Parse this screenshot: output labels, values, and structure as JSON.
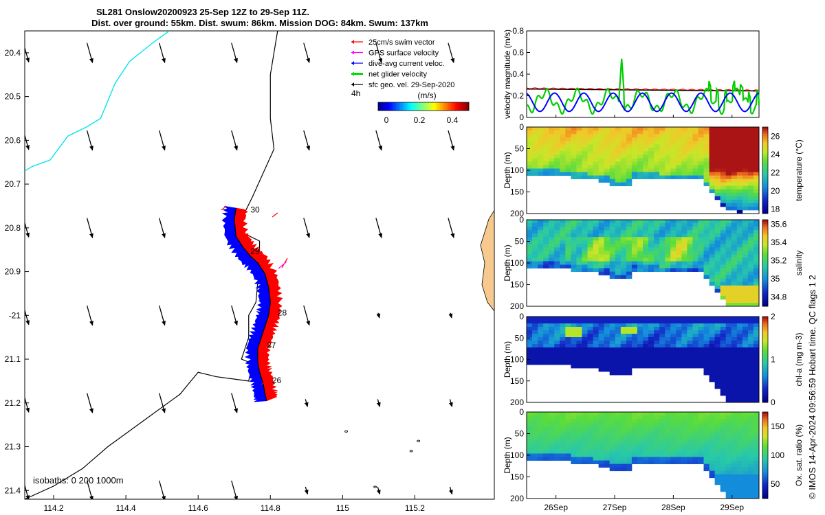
{
  "title": {
    "line1": "SL281 Onslow20200923 25-Sep 12Z to 29-Sep 11Z.",
    "line2": "Dist. over ground: 55km. Dist. swum: 86km. Mission DOG: 84km. Swum: 137km"
  },
  "footer": "© IMOS 14-Apr-2024 09:56:59 Hobart time. QC flags 1  2",
  "colors": {
    "swim": "#ff0000",
    "gps": "#ff00ff",
    "current": "#0000ff",
    "net": "#00e000",
    "geo": "#000000",
    "isobath": "#00e5ee",
    "land": "#f7c98e"
  },
  "chart_data": [
    {
      "type": "map",
      "name": "track-map",
      "xlim": [
        114.12,
        115.42
      ],
      "ylim": [
        -21.42,
        -20.35
      ],
      "x_ticks": [
        114.2,
        114.4,
        114.6,
        114.8,
        115,
        115.2
      ],
      "x_tick_labels": [
        "114.2",
        "114.4",
        "114.6",
        "114.8",
        "115",
        "115.2"
      ],
      "y_ticks": [
        -20.4,
        -20.5,
        -20.6,
        -20.7,
        -20.8,
        -20.9,
        -21.0,
        -21.1,
        -21.2,
        -21.3,
        -21.4
      ],
      "y_tick_labels": [
        "20.4",
        "20.5",
        "20.6",
        "20.7",
        "20.8",
        "20.9",
        "-21",
        "21.1",
        "21.2",
        "21.3",
        "21.4"
      ],
      "legend": [
        {
          "label": "25cm/s swim vector",
          "color": "#ff0000"
        },
        {
          "label": "GPS surface velocity",
          "color": "#ff00ff"
        },
        {
          "label": "dive-avg current veloc.",
          "color": "#0000ff"
        },
        {
          "label": "net glider velocity",
          "color": "#00e000"
        },
        {
          "label": "sfc geo. vel. 29-Sep-2020",
          "color": "#000000"
        }
      ],
      "legend_placement": "top-right",
      "interval_label": "4h",
      "colorbar": {
        "label": "(m/s)",
        "ticks": [
          0,
          0.2,
          0.4
        ],
        "tick_labels": [
          "0",
          "0.2",
          "0.4"
        ],
        "range": [
          -0.05,
          0.5
        ]
      },
      "isobath_label": "isobaths: 0   200  1000m",
      "track": [
        [
          114.705,
          -20.755
        ],
        [
          114.7,
          -20.78
        ],
        [
          114.705,
          -20.82
        ],
        [
          114.725,
          -20.845
        ],
        [
          114.745,
          -20.865
        ],
        [
          114.765,
          -20.88
        ],
        [
          114.785,
          -20.905
        ],
        [
          114.795,
          -20.935
        ],
        [
          114.8,
          -20.97
        ],
        [
          114.795,
          -21.0
        ],
        [
          114.785,
          -21.025
        ],
        [
          114.775,
          -21.05
        ],
        [
          114.765,
          -21.075
        ],
        [
          114.765,
          -21.105
        ],
        [
          114.77,
          -21.13
        ],
        [
          114.78,
          -21.155
        ],
        [
          114.785,
          -21.18
        ],
        [
          114.79,
          -21.195
        ]
      ],
      "day_labels": [
        {
          "text": "30",
          "lon": 114.745,
          "lat": -20.765
        },
        {
          "text": "29",
          "lon": 114.745,
          "lat": -20.86
        },
        {
          "text": "28",
          "lon": 114.82,
          "lat": -21.0
        },
        {
          "text": "27",
          "lon": 114.79,
          "lat": -21.075
        },
        {
          "text": "26",
          "lon": 114.805,
          "lat": -21.155
        }
      ],
      "isobath_0": [
        [
          114.82,
          -20.35
        ],
        [
          114.8,
          -20.45
        ],
        [
          114.8,
          -20.55
        ],
        [
          114.81,
          -20.62
        ],
        [
          114.75,
          -20.73
        ],
        [
          114.72,
          -20.78
        ],
        [
          114.72,
          -20.81
        ],
        [
          114.77,
          -20.83
        ],
        [
          114.77,
          -20.88
        ],
        [
          114.76,
          -20.97
        ],
        [
          114.74,
          -21.0
        ],
        [
          114.74,
          -21.05
        ],
        [
          114.72,
          -21.1
        ],
        [
          114.75,
          -21.11
        ],
        [
          114.74,
          -21.15
        ],
        [
          114.65,
          -21.14
        ],
        [
          114.6,
          -21.13
        ],
        [
          114.58,
          -21.15
        ],
        [
          114.55,
          -21.18
        ],
        [
          114.45,
          -21.24
        ],
        [
          114.35,
          -21.3
        ],
        [
          114.28,
          -21.35
        ],
        [
          114.2,
          -21.39
        ],
        [
          114.12,
          -21.42
        ]
      ],
      "isobath_200": [
        [
          114.12,
          -20.67
        ],
        [
          114.14,
          -20.66
        ],
        [
          114.19,
          -20.645
        ],
        [
          114.24,
          -20.59
        ],
        [
          114.29,
          -20.57
        ],
        [
          114.33,
          -20.55
        ],
        [
          114.37,
          -20.47
        ],
        [
          114.41,
          -20.42
        ],
        [
          114.47,
          -20.38
        ],
        [
          114.52,
          -20.35
        ]
      ],
      "geo_vectors_note": "surface geostrophic velocity arrows on a 0.2 deg grid"
    },
    {
      "type": "line",
      "name": "velocity-magnitude",
      "ylabel": "velocity magnitude (m/s)",
      "ylim": [
        0,
        0.8
      ],
      "y_ticks": [
        0,
        0.2,
        0.4,
        0.6,
        0.8
      ],
      "x_range_days": [
        25.5,
        29.46
      ],
      "series": [
        {
          "color": "#000000",
          "values_note": "steady ~0.26 decreasing to ~0.24",
          "start": 0.26,
          "end": 0.245
        },
        {
          "color": "#ff0000",
          "values_note": "steady ~0.27 decreasing to ~0.25",
          "start": 0.27,
          "end": 0.25
        },
        {
          "color": "#00cc00",
          "values_note": "oscillating 0.05-0.25 with spike ~0.55 at 27.1",
          "base": 0.15,
          "peak": 0.55,
          "peak_day": 27.1
        },
        {
          "color": "#0000ff",
          "values_note": "oscillating 0.05-0.24 with ~0.5 day period",
          "base": 0.14
        }
      ]
    },
    {
      "type": "heatmap",
      "name": "temperature-section",
      "ylabel": "Depth (m)",
      "clabel": "temperature (°C)",
      "ylim": [
        0,
        200
      ],
      "y_ticks": [
        0,
        50,
        100,
        150,
        200
      ],
      "clim": [
        17.5,
        27
      ],
      "c_ticks": [
        18,
        20,
        22,
        24,
        26
      ]
    },
    {
      "type": "heatmap",
      "name": "salinity-section",
      "ylabel": "Depth (m)",
      "clabel": "salinity",
      "ylim": [
        0,
        200
      ],
      "y_ticks": [
        0,
        50,
        100,
        150,
        200
      ],
      "clim": [
        34.7,
        35.65
      ],
      "c_ticks": [
        34.8,
        35,
        35.2,
        35.4,
        35.6
      ]
    },
    {
      "type": "heatmap",
      "name": "chla-section",
      "ylabel": "Depth (m)",
      "clabel": "chl-a (mg m-3)",
      "ylim": [
        0,
        200
      ],
      "y_ticks": [
        0,
        50,
        100,
        150,
        200
      ],
      "clim": [
        0,
        2
      ],
      "c_ticks": [
        0,
        1,
        2
      ]
    },
    {
      "type": "heatmap",
      "name": "oxygen-section",
      "ylabel": "Depth (m)",
      "clabel": "Ox. sat. ratio (%)",
      "ylim": [
        0,
        200
      ],
      "y_ticks": [
        0,
        50,
        100,
        150,
        200
      ],
      "clim": [
        25,
        175
      ],
      "c_ticks": [
        50,
        100,
        150
      ],
      "x_ticks_days": [
        26,
        27,
        28,
        29
      ],
      "x_tick_labels": [
        "26Sep",
        "27Sep",
        "28Sep",
        "29Sep"
      ]
    }
  ]
}
